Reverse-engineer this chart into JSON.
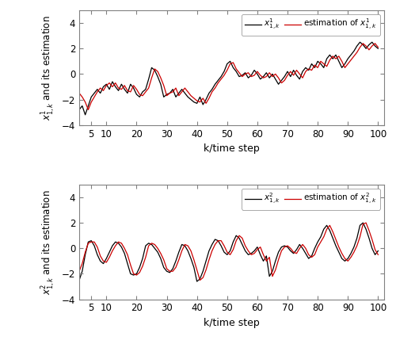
{
  "k": [
    1,
    2,
    3,
    4,
    5,
    6,
    7,
    8,
    9,
    10,
    11,
    12,
    13,
    14,
    15,
    16,
    17,
    18,
    19,
    20,
    21,
    22,
    23,
    24,
    25,
    26,
    27,
    28,
    29,
    30,
    31,
    32,
    33,
    34,
    35,
    36,
    37,
    38,
    39,
    40,
    41,
    42,
    43,
    44,
    45,
    46,
    47,
    48,
    49,
    50,
    51,
    52,
    53,
    54,
    55,
    56,
    57,
    58,
    59,
    60,
    61,
    62,
    63,
    64,
    65,
    66,
    67,
    68,
    69,
    70,
    71,
    72,
    73,
    74,
    75,
    76,
    77,
    78,
    79,
    80,
    81,
    82,
    83,
    84,
    85,
    86,
    87,
    88,
    89,
    90,
    91,
    92,
    93,
    94,
    95,
    96,
    97,
    98,
    99,
    100
  ],
  "xlabel": "k/time step",
  "ylabel1": "$x^1_{1,k}$ and its estimation",
  "ylabel2": "$x^2_{1,k}$ and its estimation",
  "legend1_line1": "$x^1_{1,k}$",
  "legend1_line2": "estimation of $x^1_{1,k}$",
  "legend2_line1": "$x^2_{1,k}$",
  "legend2_line2": "estimation of $x^2_{1,k}$",
  "ylim": [
    -4,
    5
  ],
  "yticks": [
    -4,
    -2,
    0,
    2,
    4
  ],
  "xticks": [
    5,
    10,
    20,
    30,
    40,
    50,
    60,
    70,
    80,
    90,
    100
  ],
  "line_color_true": "#000000",
  "line_color_est": "#cc0000",
  "line_width": 0.9,
  "x1_true": [
    -2.8,
    -2.5,
    -3.2,
    -2.5,
    -1.8,
    -1.5,
    -1.2,
    -1.5,
    -1.0,
    -0.8,
    -1.2,
    -0.6,
    -1.0,
    -1.3,
    -0.8,
    -1.2,
    -1.5,
    -0.8,
    -1.1,
    -1.6,
    -1.8,
    -1.4,
    -1.2,
    -0.4,
    0.5,
    0.3,
    -0.2,
    -0.8,
    -1.8,
    -1.6,
    -1.5,
    -1.2,
    -1.8,
    -1.5,
    -1.2,
    -1.5,
    -1.8,
    -2.0,
    -2.2,
    -2.3,
    -1.8,
    -2.4,
    -2.0,
    -1.5,
    -1.2,
    -0.8,
    -0.5,
    -0.2,
    0.2,
    0.8,
    1.0,
    0.5,
    0.2,
    -0.2,
    -0.1,
    0.1,
    -0.3,
    -0.1,
    0.3,
    0.0,
    -0.4,
    -0.2,
    0.1,
    -0.3,
    0.0,
    -0.4,
    -0.8,
    -0.5,
    -0.2,
    0.2,
    -0.2,
    0.3,
    -0.1,
    -0.4,
    0.2,
    0.5,
    0.3,
    0.8,
    0.5,
    1.0,
    0.8,
    0.5,
    1.2,
    1.5,
    1.2,
    1.5,
    1.0,
    0.5,
    0.8,
    1.2,
    1.5,
    1.8,
    2.2,
    2.5,
    2.3,
    2.0,
    2.3,
    2.5,
    2.2,
    2.0
  ],
  "x1_est": [
    -1.5,
    -1.8,
    -2.2,
    -2.8,
    -2.2,
    -1.8,
    -1.4,
    -1.1,
    -1.3,
    -0.9,
    -0.7,
    -1.0,
    -0.7,
    -1.1,
    -1.2,
    -0.9,
    -1.3,
    -1.4,
    -0.9,
    -1.2,
    -1.6,
    -1.7,
    -1.4,
    -1.1,
    -0.3,
    0.4,
    0.2,
    -0.3,
    -0.9,
    -1.7,
    -1.5,
    -1.4,
    -1.1,
    -1.7,
    -1.4,
    -1.1,
    -1.4,
    -1.7,
    -1.9,
    -2.1,
    -2.2,
    -1.9,
    -2.3,
    -1.9,
    -1.4,
    -1.1,
    -0.7,
    -0.4,
    -0.1,
    0.3,
    0.8,
    0.9,
    0.4,
    0.1,
    -0.2,
    -0.0,
    0.1,
    -0.2,
    -0.1,
    0.2,
    -0.1,
    -0.3,
    -0.2,
    0.1,
    -0.2,
    0.0,
    -0.3,
    -0.7,
    -0.5,
    -0.1,
    0.2,
    -0.1,
    0.3,
    -0.0,
    -0.3,
    0.2,
    0.4,
    0.3,
    0.7,
    0.5,
    1.0,
    0.8,
    0.6,
    1.1,
    1.4,
    1.2,
    1.4,
    1.0,
    0.5,
    0.8,
    1.1,
    1.4,
    1.7,
    2.1,
    2.4,
    2.2,
    1.9,
    2.2,
    2.4,
    2.1
  ],
  "x2_true": [
    -2.5,
    -1.8,
    -0.5,
    0.5,
    0.6,
    0.2,
    -0.5,
    -1.0,
    -1.2,
    -0.8,
    -0.3,
    0.2,
    0.5,
    0.4,
    0.1,
    -0.4,
    -1.2,
    -2.0,
    -2.1,
    -2.0,
    -1.5,
    -0.8,
    0.2,
    0.4,
    0.3,
    0.0,
    -0.3,
    -0.8,
    -1.5,
    -1.8,
    -1.9,
    -1.6,
    -1.0,
    -0.3,
    0.3,
    0.2,
    -0.2,
    -0.8,
    -1.5,
    -2.6,
    -2.4,
    -1.8,
    -1.0,
    -0.2,
    0.3,
    0.7,
    0.6,
    0.2,
    -0.3,
    -0.5,
    -0.2,
    0.5,
    1.0,
    0.8,
    0.3,
    -0.2,
    -0.5,
    -0.4,
    -0.2,
    0.1,
    -0.5,
    -1.0,
    -0.6,
    -2.2,
    -1.8,
    -1.0,
    -0.3,
    0.1,
    0.2,
    0.1,
    -0.2,
    -0.4,
    -0.1,
    0.3,
    0.0,
    -0.4,
    -0.8,
    -0.6,
    0.0,
    0.5,
    0.9,
    1.5,
    1.8,
    1.4,
    0.8,
    0.2,
    -0.3,
    -0.8,
    -1.0,
    -0.8,
    -0.4,
    0.1,
    0.8,
    1.8,
    2.0,
    1.5,
    0.8,
    0.0,
    -0.5,
    -0.2
  ],
  "x2_est": [
    -1.8,
    -1.2,
    -0.3,
    0.4,
    0.5,
    0.5,
    0.1,
    -0.6,
    -1.0,
    -1.1,
    -0.7,
    -0.2,
    0.2,
    0.5,
    0.4,
    0.0,
    -0.5,
    -1.3,
    -2.0,
    -2.1,
    -1.9,
    -1.4,
    -0.7,
    0.2,
    0.4,
    0.3,
    -0.0,
    -0.4,
    -0.9,
    -1.6,
    -1.8,
    -1.8,
    -1.5,
    -0.9,
    -0.2,
    0.3,
    0.2,
    -0.2,
    -0.9,
    -1.7,
    -2.5,
    -2.3,
    -1.7,
    -0.9,
    -0.2,
    0.3,
    0.6,
    0.6,
    0.2,
    -0.3,
    -0.5,
    -0.1,
    0.6,
    1.0,
    0.8,
    0.2,
    -0.2,
    -0.5,
    -0.4,
    -0.1,
    0.1,
    -0.5,
    -1.0,
    -0.7,
    -2.2,
    -1.7,
    -0.9,
    -0.2,
    0.1,
    0.2,
    0.0,
    -0.3,
    -0.4,
    -0.0,
    0.3,
    -0.0,
    -0.5,
    -0.7,
    -0.5,
    0.1,
    0.5,
    0.9,
    1.5,
    1.8,
    1.3,
    0.7,
    0.1,
    -0.4,
    -0.8,
    -1.0,
    -0.7,
    -0.3,
    0.2,
    0.9,
    1.9,
    2.0,
    1.4,
    0.7,
    -0.1,
    -0.5
  ]
}
